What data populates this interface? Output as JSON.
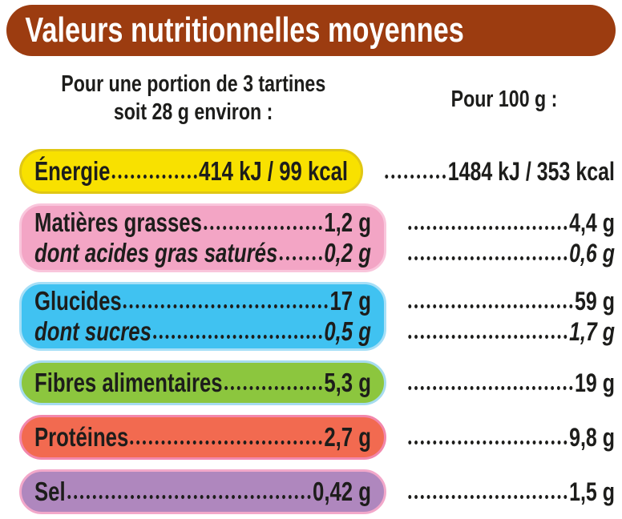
{
  "header": {
    "title": "Valeurs nutritionnelles moyennes",
    "bg": "#9c3c10",
    "text_color": "#ffffff"
  },
  "columns": {
    "portion": {
      "line1": "Pour une portion de 3 tartines",
      "line2": "soit 28 g environ :"
    },
    "per100": {
      "label": "Pour 100 g :"
    }
  },
  "colors": {
    "ink": "#1d1d1b",
    "background": "#ffffff"
  },
  "rows": [
    {
      "label": "Énergie",
      "portion_value": "414 kJ / 99 kcal",
      "per100_value": "1484 kJ / 353 kcal",
      "fill": "#f8e100",
      "border": "#e0c713"
    },
    {
      "label": "Matières grasses",
      "portion_value": "1,2 g",
      "per100_value": "4,4 g",
      "fill": "#f3a5c5",
      "border": "#f9c6dc",
      "sub": {
        "label": "dont acides gras saturés",
        "portion_value": "0,2 g",
        "per100_value": "0,6 g"
      }
    },
    {
      "label": "Glucides",
      "portion_value": "17 g",
      "per100_value": "59 g",
      "fill": "#40c2f1",
      "border": "#a6dff7",
      "sub": {
        "label": "dont sucres",
        "portion_value": "0,5 g",
        "per100_value": "1,7 g"
      }
    },
    {
      "label": "Fibres alimentaires",
      "portion_value": "5,3 g",
      "per100_value": "19 g",
      "fill": "#8cc63e",
      "border": "#a6dcef"
    },
    {
      "label": "Protéines",
      "portion_value": "2,7 g",
      "per100_value": "9,8 g",
      "fill": "#f26a50",
      "border": "#f287ac"
    },
    {
      "label": "Sel",
      "portion_value": "0,42 g",
      "per100_value": "1,5 g",
      "fill": "#af87be",
      "border": "#f2a8ca"
    }
  ]
}
